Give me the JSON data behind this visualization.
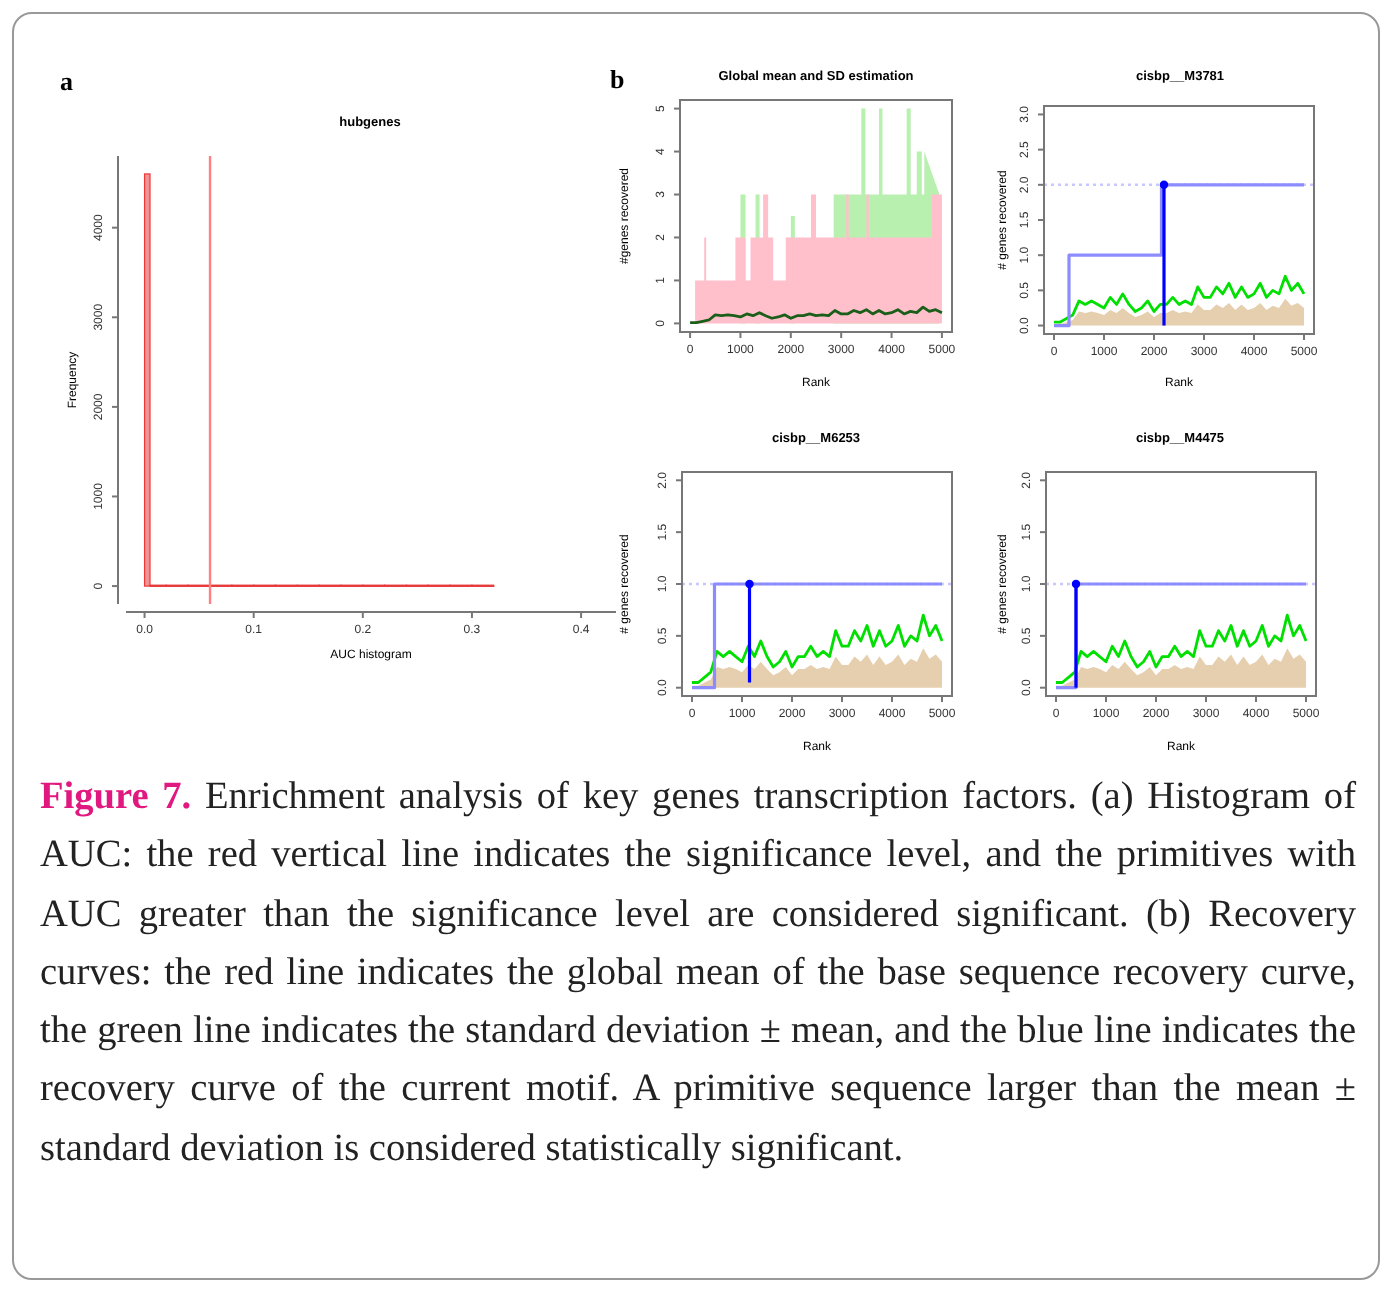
{
  "chart_data": [
    {
      "type": "histogram",
      "title": "hubgenes",
      "xlabel": "AUC histogram",
      "ylabel": "Frequency",
      "color": "#e83a3a",
      "bins": [
        0,
        0.005,
        0.02,
        0.04,
        0.06,
        0.08,
        0.1,
        0.12,
        0.14,
        0.16,
        0.18,
        0.2,
        0.22,
        0.24,
        0.26,
        0.28,
        0.3,
        0.32
      ],
      "values": [
        4600,
        10,
        10,
        10,
        10,
        10,
        10,
        10,
        10,
        10,
        10,
        10,
        10,
        10,
        10,
        10,
        10
      ],
      "xlim": [
        -0.017,
        0.432
      ],
      "xticks": [
        {
          "value": 0,
          "label": "0.0"
        },
        0.1,
        0.2,
        0.3,
        0.4
      ],
      "ylim": [
        -200,
        4800
      ],
      "yticks": [
        0,
        1000,
        2000,
        3000,
        4000
      ],
      "ref_lines": [
        {
          "axis": "x",
          "value": 0.06,
          "color": "#ff8080"
        }
      ],
      "annotations": [
        "a",
        "Figure 7.",
        "Enrichment analysis of key genes transcription factors. (a) Histogram of AUC: the red vertical line indicates the significance level, and the primitives with AUC greater than the significance level are considered significant. (b) Recovery curves: the red line indicates the global mean of the base sequence recovery curve, the green line indicates the standard deviation ± mean, and the blue line indicates the recovery curve of the current motif. A primitive sequence larger than the mean ± standard deviation is considered statistically significant."
      ]
    },
    {
      "type": "line",
      "title": "Global mean and SD estimation",
      "xlabel": "Rank",
      "ylabel": "#genes recovered",
      "annotations": [
        "b"
      ],
      "xlim": [
        -200,
        5200
      ],
      "xticks": [
        0,
        1000,
        2000,
        3000,
        4000,
        5000
      ],
      "ylim": [
        -0.2,
        5.2
      ],
      "yticks": [
        0,
        1,
        2,
        3,
        4,
        5
      ],
      "x": [
        0,
        125,
        250,
        375,
        500,
        625,
        750,
        875,
        1000,
        1125,
        1250,
        1375,
        1500,
        1625,
        1750,
        1875,
        2000,
        2125,
        2250,
        2375,
        2500,
        2625,
        2750,
        2875,
        3000,
        3125,
        3250,
        3375,
        3500,
        3625,
        3750,
        3875,
        4000,
        4125,
        4250,
        4375,
        4500,
        4625,
        4750,
        4875,
        5000
      ],
      "series": [
        {
          "type": "area",
          "color": "#b8f0b0",
          "x": [
            1000,
            1000,
            1100,
            1100,
            1300,
            1300,
            1380,
            1380,
            2000,
            2000,
            2080,
            2080,
            2850,
            2850,
            3350,
            3350,
            3400,
            3400,
            3480,
            3480,
            3750,
            3750,
            3820,
            3820,
            3900,
            3900,
            4300,
            4300,
            4380,
            4380,
            4500,
            4500,
            4600,
            4600,
            4650,
            4650,
            4950,
            4950
          ],
          "values": [
            0,
            3,
            3,
            0,
            0,
            3,
            3,
            0,
            0,
            2.5,
            2.5,
            0,
            0,
            3,
            3,
            3,
            3,
            5,
            5,
            3,
            3,
            5,
            5,
            3,
            3,
            3,
            3,
            5,
            5,
            3,
            3,
            4,
            4,
            3,
            3,
            4,
            3,
            0
          ]
        },
        {
          "type": "area",
          "color": "#ffc0cb",
          "x": [
            0,
            100,
            100,
            280,
            280,
            320,
            320,
            900,
            900,
            1100,
            1100,
            1200,
            1200,
            1450,
            1450,
            1550,
            1550,
            1650,
            1650,
            1900,
            1900,
            2400,
            2400,
            2500,
            2500,
            2800,
            3100,
            3100,
            3150,
            3150,
            3500,
            3500,
            3550,
            3550,
            4800,
            4800,
            5000
          ],
          "values": [
            0,
            0,
            1,
            1,
            2,
            2,
            1,
            1,
            2,
            2,
            1,
            1,
            2,
            2,
            3,
            3,
            2,
            2,
            1,
            1,
            2,
            2,
            3,
            3,
            2,
            2,
            2,
            3,
            3,
            2,
            2,
            3,
            3,
            2,
            2,
            3,
            3
          ]
        },
        {
          "type": "line",
          "color": "#1a5e1a",
          "values": [
            0.02,
            0.02,
            0.05,
            0.08,
            0.2,
            0.18,
            0.2,
            0.18,
            0.15,
            0.22,
            0.18,
            0.25,
            0.18,
            0.12,
            0.15,
            0.2,
            0.12,
            0.18,
            0.18,
            0.22,
            0.18,
            0.2,
            0.18,
            0.3,
            0.22,
            0.22,
            0.3,
            0.25,
            0.32,
            0.22,
            0.3,
            0.22,
            0.25,
            0.32,
            0.22,
            0.28,
            0.25,
            0.38,
            0.28,
            0.32,
            0.25
          ]
        }
      ]
    },
    {
      "type": "line",
      "title": "cisbp__M3781",
      "ylabel": "# genes recovered",
      "xlabel": "Rank",
      "xlim": [
        -200,
        5200
      ],
      "xticks": [
        0,
        1000,
        2000,
        3000,
        4000,
        5000
      ],
      "ylim": [
        -0.12,
        3.12
      ],
      "yticks": [
        {
          "value": 0,
          "label": "0.0"
        },
        0.5,
        {
          "value": 1,
          "label": "1.0"
        },
        1.5,
        {
          "value": 2,
          "label": "2.0"
        },
        2.5,
        {
          "value": 3,
          "label": "3.0"
        }
      ],
      "x": [
        0,
        125,
        250,
        375,
        500,
        625,
        750,
        875,
        1000,
        1125,
        1250,
        1375,
        1500,
        1625,
        1750,
        1875,
        2000,
        2125,
        2250,
        2375,
        2500,
        2625,
        2750,
        2875,
        3000,
        3125,
        3250,
        3375,
        3500,
        3625,
        3750,
        3875,
        4000,
        4125,
        4250,
        4375,
        4500,
        4625,
        4750,
        4875,
        5000
      ],
      "ref_lines": [
        {
          "axis": "y",
          "value": 2,
          "color": "#c8c8ff",
          "line_style": "dotted"
        }
      ],
      "series": [
        {
          "type": "area",
          "color": "#e6cfae",
          "values": [
            0.02,
            0.02,
            0.05,
            0.08,
            0.2,
            0.18,
            0.2,
            0.18,
            0.15,
            0.22,
            0.18,
            0.25,
            0.18,
            0.12,
            0.15,
            0.2,
            0.12,
            0.18,
            0.18,
            0.22,
            0.18,
            0.2,
            0.18,
            0.3,
            0.22,
            0.22,
            0.3,
            0.25,
            0.32,
            0.22,
            0.3,
            0.22,
            0.25,
            0.32,
            0.22,
            0.28,
            0.25,
            0.38,
            0.28,
            0.32,
            0.25
          ]
        },
        {
          "type": "line",
          "color": "#00e000",
          "values": [
            0.05,
            0.05,
            0.1,
            0.15,
            0.35,
            0.3,
            0.35,
            0.3,
            0.25,
            0.4,
            0.3,
            0.45,
            0.3,
            0.2,
            0.25,
            0.35,
            0.2,
            0.3,
            0.3,
            0.4,
            0.3,
            0.35,
            0.3,
            0.55,
            0.4,
            0.4,
            0.55,
            0.45,
            0.6,
            0.4,
            0.55,
            0.4,
            0.45,
            0.6,
            0.4,
            0.5,
            0.45,
            0.7,
            0.5,
            0.6,
            0.45
          ]
        },
        {
          "type": "step",
          "color": "#8c8cff",
          "x": [
            0,
            300,
            2150,
            5000
          ],
          "values": [
            0,
            1,
            2,
            2
          ]
        },
        {
          "type": "scatter",
          "color": "#0000ff",
          "marker": "circle",
          "x": [
            2200
          ],
          "values": [
            2
          ],
          "errors": [
            [
              0,
              2
            ]
          ]
        }
      ]
    },
    {
      "type": "line",
      "title": "cisbp__M6253",
      "ylabel": "# genes recovered",
      "xlabel": "Rank",
      "xlim": [
        -200,
        5200
      ],
      "xticks": [
        0,
        1000,
        2000,
        3000,
        4000,
        5000
      ],
      "ylim": [
        -0.08,
        2.08
      ],
      "yticks": [
        {
          "value": 0,
          "label": "0.0"
        },
        0.5,
        {
          "value": 1,
          "label": "1.0"
        },
        1.5,
        {
          "value": 2,
          "label": "2.0"
        }
      ],
      "x": [
        0,
        125,
        250,
        375,
        500,
        625,
        750,
        875,
        1000,
        1125,
        1250,
        1375,
        1500,
        1625,
        1750,
        1875,
        2000,
        2125,
        2250,
        2375,
        2500,
        2625,
        2750,
        2875,
        3000,
        3125,
        3250,
        3375,
        3500,
        3625,
        3750,
        3875,
        4000,
        4125,
        4250,
        4375,
        4500,
        4625,
        4750,
        4875,
        5000
      ],
      "ref_lines": [
        {
          "axis": "y",
          "value": 1,
          "color": "#c8c8ff",
          "line_style": "dotted"
        }
      ],
      "series": [
        {
          "type": "area",
          "color": "#e6cfae",
          "values": [
            0.02,
            0.02,
            0.05,
            0.08,
            0.2,
            0.18,
            0.2,
            0.18,
            0.15,
            0.22,
            0.18,
            0.25,
            0.18,
            0.12,
            0.15,
            0.2,
            0.12,
            0.18,
            0.18,
            0.22,
            0.18,
            0.2,
            0.18,
            0.3,
            0.22,
            0.22,
            0.3,
            0.25,
            0.32,
            0.22,
            0.3,
            0.22,
            0.25,
            0.32,
            0.22,
            0.28,
            0.25,
            0.38,
            0.28,
            0.32,
            0.25
          ]
        },
        {
          "type": "line",
          "color": "#00e000",
          "values": [
            0.05,
            0.05,
            0.1,
            0.15,
            0.35,
            0.3,
            0.35,
            0.3,
            0.25,
            0.4,
            0.3,
            0.45,
            0.3,
            0.2,
            0.25,
            0.35,
            0.2,
            0.3,
            0.3,
            0.4,
            0.3,
            0.35,
            0.3,
            0.55,
            0.4,
            0.4,
            0.55,
            0.45,
            0.6,
            0.4,
            0.55,
            0.4,
            0.45,
            0.6,
            0.4,
            0.5,
            0.45,
            0.7,
            0.5,
            0.6,
            0.45
          ]
        },
        {
          "type": "step",
          "color": "#8c8cff",
          "x": [
            0,
            450,
            5000
          ],
          "values": [
            0,
            1,
            1
          ]
        },
        {
          "type": "scatter",
          "color": "#0000ff",
          "marker": "circle",
          "x": [
            1150
          ],
          "values": [
            1
          ],
          "errors": [
            [
              0.05,
              1
            ]
          ]
        }
      ]
    },
    {
      "type": "line",
      "title": "cisbp__M4475",
      "ylabel": "# genes recovered",
      "xlabel": "Rank",
      "xlim": [
        -200,
        5200
      ],
      "xticks": [
        0,
        1000,
        2000,
        3000,
        4000,
        5000
      ],
      "ylim": [
        -0.08,
        2.08
      ],
      "yticks": [
        {
          "value": 0,
          "label": "0.0"
        },
        0.5,
        {
          "value": 1,
          "label": "1.0"
        },
        1.5,
        {
          "value": 2,
          "label": "2.0"
        }
      ],
      "x": [
        0,
        125,
        250,
        375,
        500,
        625,
        750,
        875,
        1000,
        1125,
        1250,
        1375,
        1500,
        1625,
        1750,
        1875,
        2000,
        2125,
        2250,
        2375,
        2500,
        2625,
        2750,
        2875,
        3000,
        3125,
        3250,
        3375,
        3500,
        3625,
        3750,
        3875,
        4000,
        4125,
        4250,
        4375,
        4500,
        4625,
        4750,
        4875,
        5000
      ],
      "ref_lines": [
        {
          "axis": "y",
          "value": 1,
          "color": "#c8c8ff",
          "line_style": "dotted"
        }
      ],
      "series": [
        {
          "type": "area",
          "color": "#e6cfae",
          "values": [
            0.02,
            0.02,
            0.05,
            0.08,
            0.2,
            0.18,
            0.2,
            0.18,
            0.15,
            0.22,
            0.18,
            0.25,
            0.18,
            0.12,
            0.15,
            0.2,
            0.12,
            0.18,
            0.18,
            0.22,
            0.18,
            0.2,
            0.18,
            0.3,
            0.22,
            0.22,
            0.3,
            0.25,
            0.32,
            0.22,
            0.3,
            0.22,
            0.25,
            0.32,
            0.22,
            0.28,
            0.25,
            0.38,
            0.28,
            0.32,
            0.25
          ]
        },
        {
          "type": "line",
          "color": "#00e000",
          "values": [
            0.05,
            0.05,
            0.1,
            0.15,
            0.35,
            0.3,
            0.35,
            0.3,
            0.25,
            0.4,
            0.3,
            0.45,
            0.3,
            0.2,
            0.25,
            0.35,
            0.2,
            0.3,
            0.3,
            0.4,
            0.3,
            0.35,
            0.3,
            0.55,
            0.4,
            0.4,
            0.55,
            0.45,
            0.6,
            0.4,
            0.55,
            0.4,
            0.45,
            0.6,
            0.4,
            0.5,
            0.45,
            0.7,
            0.5,
            0.6,
            0.45
          ]
        },
        {
          "type": "step",
          "color": "#8c8cff",
          "x": [
            0,
            400,
            5000
          ],
          "values": [
            0,
            1,
            1
          ]
        },
        {
          "type": "scatter",
          "color": "#0000ff",
          "marker": "circle",
          "x": [
            400
          ],
          "values": [
            1
          ],
          "errors": [
            [
              0,
              1
            ]
          ]
        }
      ]
    }
  ]
}
